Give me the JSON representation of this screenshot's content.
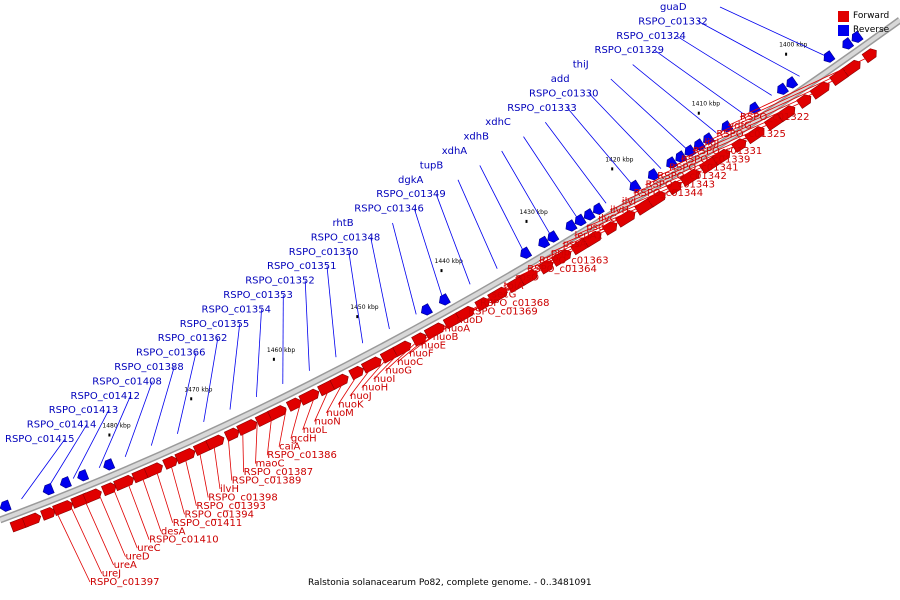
{
  "caption": "Ralstonia solanacearum Po82, complete genome. - 0..3481091",
  "legend": [
    {
      "label": "Forward",
      "color": "#e00000"
    },
    {
      "label": "Reverse",
      "color": "#0000ee"
    }
  ],
  "colors": {
    "forward": "#e00000",
    "reverse": "#0000ee",
    "forward_label": "#cc0000",
    "reverse_label": "#0000bb",
    "backbone": "#b0b0b0"
  },
  "kbp_ticks": [
    "1400 kbp",
    "1410 kbp",
    "1420 kbp",
    "1430 kbp",
    "1440 kbp",
    "1450 kbp",
    "1460 kbp",
    "1470 kbp",
    "1480 kbp"
  ],
  "forward_labels": [
    "RSPO_c01322",
    "ydfG",
    "RSPO_c01325",
    "ligJ",
    "RSPO_c01331",
    "RSPO_c01339",
    "RSPO_c01341",
    "RSPO_c01342",
    "RSPO_c01343",
    "RSPO_c01344",
    "ilvI",
    "ilvH",
    "ilvC",
    "psd",
    "leuA1",
    "pssA",
    "pnp",
    "RSPO_c01363",
    "RSPO_c01364",
    "rpsO",
    "tpiA",
    "secG",
    "RSPO_c01368",
    "RSPO_c01369",
    "nuoD",
    "nuoA",
    "nuoB",
    "nuoE",
    "nuoF",
    "nuoC",
    "nuoG",
    "nuoI",
    "nuoH",
    "nuoJ",
    "nuoK",
    "nuoM",
    "nuoN",
    "nuoL",
    "gcdH",
    "caiA",
    "RSPO_c01386",
    "maoC",
    "RSPO_c01387",
    "RSPO_c01389",
    "ilvH",
    "RSPO_c01398",
    "RSPO_c01393",
    "RSPO_c01394",
    "RSPO_c01411",
    "desA",
    "RSPO_c01410",
    "ureC",
    "ureD",
    "ureA",
    "ureJ",
    "RSPO_c01397"
  ],
  "reverse_labels": [
    "guaD",
    "RSPO_c01332",
    "RSPO_c01324",
    "RSPO_c01329",
    "thiJ",
    "add",
    "RSPO_c01330",
    "RSPO_c01333",
    "xdhC",
    "xdhB",
    "xdhA",
    "tupB",
    "dgkA",
    "RSPO_c01349",
    "RSPO_c01346",
    "rhtB",
    "RSPO_c01348",
    "RSPO_c01350",
    "RSPO_c01351",
    "RSPO_c01352",
    "RSPO_c01353",
    "RSPO_c01354",
    "RSPO_c01355",
    "RSPO_c01362",
    "RSPO_c01366",
    "RSPO_c01388",
    "RSPO_c01408",
    "RSPO_c01412",
    "RSPO_c01413",
    "RSPO_c01414",
    "RSPO_c01415"
  ]
}
